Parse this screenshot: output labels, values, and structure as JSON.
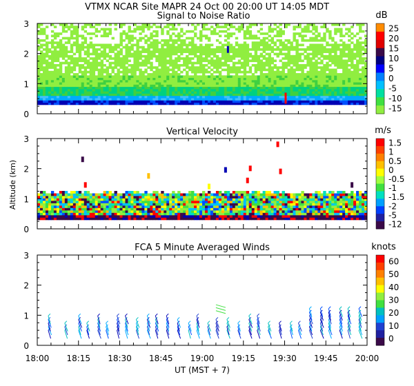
{
  "header": {
    "title": "VTMX   NCAR Site   MAPR 24 Oct 00   20:00 UT   14:05   MDT"
  },
  "x_axis": {
    "label": "UT   (MST + 7)",
    "ticks": [
      "18:00",
      "18:15",
      "18:30",
      "18:45",
      "19:00",
      "19:15",
      "19:30",
      "19:45",
      "20:00"
    ],
    "range_minutes": [
      0,
      120
    ]
  },
  "y_axis": {
    "label": "Altitude (km)",
    "ticks": [
      "0",
      "1",
      "2",
      "3"
    ],
    "range_km": [
      0,
      3
    ]
  },
  "colors": {
    "ramp": [
      "#3a0a48",
      "#0000b4",
      "#0050ff",
      "#00aaff",
      "#00e0e0",
      "#00d080",
      "#40e040",
      "#90ee40",
      "#ffff00",
      "#ffc000",
      "#ff7000",
      "#ff0000"
    ],
    "snr_bg": "#90ee40",
    "snr_mid": "#40d040",
    "snr_low": "#00aaff"
  },
  "chart_data": [
    {
      "type": "heatmap",
      "title": "Signal to Noise Ratio",
      "units": "dB",
      "colorbar_labels": [
        "25",
        "20",
        "15",
        "10",
        "5",
        "0",
        "-5",
        "-10",
        "-15"
      ],
      "ylim": [
        0,
        3
      ],
      "xlim": [
        0,
        120
      ]
    },
    {
      "type": "heatmap",
      "title": "Vertical Velocity",
      "units": "m/s",
      "colorbar_labels": [
        "1.5",
        "1",
        "0.5",
        "0",
        "-0.5",
        "-1",
        "-1.5",
        "-2",
        "-5",
        "-12"
      ],
      "ylim": [
        0,
        3
      ],
      "xlim": [
        0,
        120
      ]
    },
    {
      "type": "scatter",
      "title": "FCA 5 Minute Averaged Winds",
      "units": "knots",
      "colorbar_labels": [
        "60",
        "50",
        "40",
        "30",
        "20",
        "10",
        "0"
      ],
      "ylim": [
        0,
        3
      ],
      "xlim": [
        0,
        120
      ],
      "barb_times_min": [
        4,
        10,
        15,
        18,
        22,
        25,
        29,
        32,
        36,
        40,
        43,
        47,
        51,
        55,
        58,
        62,
        65,
        69,
        73,
        77,
        80,
        84,
        88,
        92,
        95,
        99,
        103,
        106,
        110,
        113,
        117
      ],
      "barb_heights_km": [
        0.55,
        0.6,
        0.65,
        0.7,
        0.75,
        0.8,
        0.85,
        0.95,
        1.0
      ]
    }
  ]
}
